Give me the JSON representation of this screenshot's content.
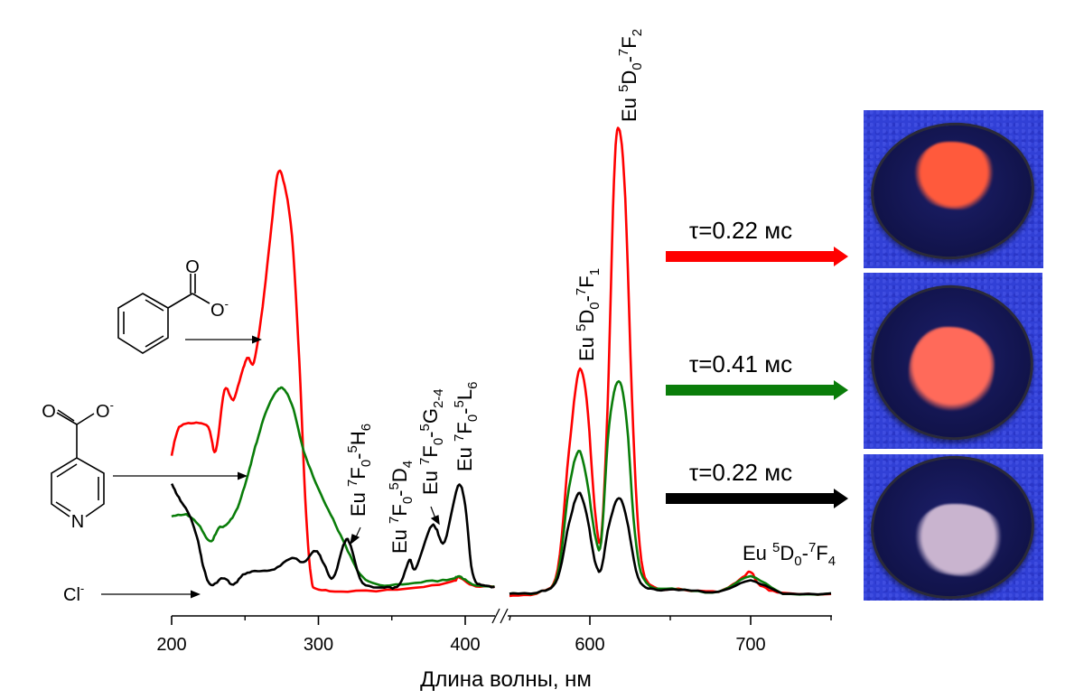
{
  "chart_data": {
    "type": "line",
    "xlabel": "Длина волны, нм",
    "ylabel": "",
    "x_axis_break": [
      420,
      550
    ],
    "xlim_segments": [
      [
        200,
        420
      ],
      [
        550,
        750
      ]
    ],
    "xticks": [
      200,
      300,
      400,
      600,
      700
    ],
    "minor_xticks": [
      250,
      350,
      550,
      650,
      750
    ],
    "y_axis_shown": false,
    "y_units": "arbitrary (max = 100)",
    "colors": {
      "benzoate": "#ff0000",
      "isonicotinate": "#0a7d0a",
      "chloride": "#000000"
    },
    "series": [
      {
        "color": "#ff0000",
        "excitation": [
          [
            200,
            30
          ],
          [
            205,
            36
          ],
          [
            215,
            37
          ],
          [
            225,
            36
          ],
          [
            230,
            31
          ],
          [
            236,
            44
          ],
          [
            242,
            42
          ],
          [
            248,
            48
          ],
          [
            252,
            51
          ],
          [
            256,
            50
          ],
          [
            262,
            62
          ],
          [
            268,
            79
          ],
          [
            272,
            90
          ],
          [
            276,
            89
          ],
          [
            282,
            77
          ],
          [
            287,
            50
          ],
          [
            291,
            21
          ],
          [
            295,
            4
          ],
          [
            300,
            1.5
          ],
          [
            320,
            1
          ],
          [
            360,
            1.5
          ],
          [
            390,
            3
          ],
          [
            396,
            4
          ],
          [
            405,
            2.3
          ],
          [
            420,
            2
          ]
        ],
        "emission": [
          [
            550,
            0
          ],
          [
            570,
            1
          ],
          [
            580,
            5.8
          ],
          [
            587,
            31
          ],
          [
            593,
            48
          ],
          [
            598,
            42
          ],
          [
            603,
            19
          ],
          [
            607,
            12.5
          ],
          [
            611,
            40.5
          ],
          [
            615,
            89
          ],
          [
            618,
            100
          ],
          [
            622,
            85
          ],
          [
            627,
            35
          ],
          [
            632,
            7.7
          ],
          [
            640,
            2
          ],
          [
            655,
            1.5
          ],
          [
            680,
            1
          ],
          [
            695,
            3.9
          ],
          [
            700,
            5.2
          ],
          [
            706,
            2.3
          ],
          [
            720,
            0.6
          ],
          [
            750,
            0.4
          ]
        ]
      },
      {
        "color": "#0a7d0a",
        "excitation": [
          [
            200,
            17
          ],
          [
            210,
            17.4
          ],
          [
            218,
            15.4
          ],
          [
            226,
            11.6
          ],
          [
            232,
            14.5
          ],
          [
            238,
            15.4
          ],
          [
            245,
            19
          ],
          [
            252,
            26
          ],
          [
            258,
            33
          ],
          [
            265,
            40
          ],
          [
            272,
            44
          ],
          [
            277,
            44
          ],
          [
            283,
            40
          ],
          [
            290,
            31
          ],
          [
            300,
            23
          ],
          [
            310,
            16.4
          ],
          [
            320,
            9.7
          ],
          [
            330,
            4
          ],
          [
            345,
            2.3
          ],
          [
            370,
            3
          ],
          [
            390,
            3.5
          ],
          [
            396,
            4.2
          ],
          [
            405,
            2.5
          ],
          [
            420,
            2
          ]
        ],
        "emission": [
          [
            550,
            0.5
          ],
          [
            570,
            1
          ],
          [
            580,
            4.8
          ],
          [
            587,
            23
          ],
          [
            593,
            31
          ],
          [
            598,
            25
          ],
          [
            603,
            13.5
          ],
          [
            607,
            11.6
          ],
          [
            612,
            36.7
          ],
          [
            618,
            46
          ],
          [
            623,
            37
          ],
          [
            628,
            13.5
          ],
          [
            635,
            2.9
          ],
          [
            655,
            1.5
          ],
          [
            680,
            1
          ],
          [
            700,
            4.2
          ],
          [
            720,
            0.6
          ],
          [
            750,
            0.4
          ]
        ]
      },
      {
        "color": "#000000",
        "excitation": [
          [
            200,
            24
          ],
          [
            205,
            21
          ],
          [
            212,
            17.4
          ],
          [
            218,
            11.6
          ],
          [
            222,
            5.8
          ],
          [
            227,
            2.3
          ],
          [
            235,
            3.9
          ],
          [
            242,
            2.5
          ],
          [
            250,
            4.8
          ],
          [
            260,
            5.4
          ],
          [
            270,
            5.8
          ],
          [
            282,
            8.1
          ],
          [
            290,
            7.3
          ],
          [
            298,
            9.7
          ],
          [
            304,
            6.8
          ],
          [
            310,
            3.9
          ],
          [
            318,
            11.6
          ],
          [
            322,
            10.6
          ],
          [
            330,
            2.9
          ],
          [
            345,
            1.9
          ],
          [
            355,
            2.3
          ],
          [
            362,
            7.7
          ],
          [
            366,
            5.8
          ],
          [
            376,
            14.5
          ],
          [
            380,
            14.5
          ],
          [
            386,
            11.6
          ],
          [
            395,
            23.5
          ],
          [
            400,
            19.3
          ],
          [
            405,
            4.8
          ],
          [
            412,
            2.3
          ],
          [
            420,
            2
          ]
        ],
        "emission": [
          [
            550,
            0.5
          ],
          [
            570,
            1
          ],
          [
            580,
            3.9
          ],
          [
            587,
            15.4
          ],
          [
            593,
            22
          ],
          [
            598,
            17.4
          ],
          [
            603,
            7.7
          ],
          [
            607,
            5.8
          ],
          [
            612,
            15.4
          ],
          [
            618,
            21
          ],
          [
            623,
            16.4
          ],
          [
            630,
            3.9
          ],
          [
            640,
            1.5
          ],
          [
            655,
            1.4
          ],
          [
            680,
            1
          ],
          [
            700,
            3.3
          ],
          [
            720,
            0.6
          ],
          [
            750,
            0.4
          ]
        ]
      }
    ],
    "annotations": [
      {
        "parts": [
          [
            "Eu ",
            ""
          ],
          [
            "7",
            "sup"
          ],
          [
            "F",
            ""
          ],
          [
            "0",
            "sub"
          ],
          [
            "-",
            ""
          ],
          [
            "5",
            "sup"
          ],
          [
            "H",
            ""
          ],
          [
            "6",
            "sub"
          ]
        ]
      },
      {
        "parts": [
          [
            "Eu ",
            ""
          ],
          [
            "7",
            "sup"
          ],
          [
            "F",
            ""
          ],
          [
            "0",
            "sub"
          ],
          [
            "-",
            ""
          ],
          [
            "5",
            "sup"
          ],
          [
            "D",
            ""
          ],
          [
            "4",
            "sub"
          ]
        ]
      },
      {
        "parts": [
          [
            "Eu ",
            ""
          ],
          [
            "7",
            "sup"
          ],
          [
            "F",
            ""
          ],
          [
            "0",
            "sub"
          ],
          [
            "-",
            ""
          ],
          [
            "5",
            "sup"
          ],
          [
            "G",
            ""
          ],
          [
            "2-4",
            "sub"
          ]
        ]
      },
      {
        "parts": [
          [
            "Eu ",
            ""
          ],
          [
            "7",
            "sup"
          ],
          [
            "F",
            ""
          ],
          [
            "0",
            "sub"
          ],
          [
            "-",
            ""
          ],
          [
            "5",
            "sup"
          ],
          [
            "L",
            ""
          ],
          [
            "6",
            "sub"
          ]
        ]
      },
      {
        "parts": [
          [
            "Eu ",
            ""
          ],
          [
            "5",
            "sup"
          ],
          [
            "D",
            ""
          ],
          [
            "0",
            "sub"
          ],
          [
            "-",
            ""
          ],
          [
            "7",
            "sup"
          ],
          [
            "F",
            ""
          ],
          [
            "1",
            "sub"
          ]
        ]
      },
      {
        "parts": [
          [
            "Eu ",
            ""
          ],
          [
            "5",
            "sup"
          ],
          [
            "D",
            ""
          ],
          [
            "0",
            "sub"
          ],
          [
            "-",
            ""
          ],
          [
            "7",
            "sup"
          ],
          [
            "F",
            ""
          ],
          [
            "2",
            "sub"
          ]
        ]
      },
      {
        "parts": [
          [
            "Eu ",
            ""
          ],
          [
            "5",
            "sup"
          ],
          [
            "D",
            ""
          ],
          [
            "0",
            "sub"
          ],
          [
            "-",
            ""
          ],
          [
            "7",
            "sup"
          ],
          [
            "F",
            ""
          ],
          [
            "4",
            "sub"
          ]
        ]
      }
    ],
    "lifetimes": [
      {
        "label": "τ=0.22 мс",
        "color": "#ff0000"
      },
      {
        "label": "τ=0.41 мс",
        "color": "#0a7d0a"
      },
      {
        "label": "τ=0.22 мс",
        "color": "#000000"
      }
    ]
  },
  "ligands": {
    "benzoate": {
      "o_label": "O",
      "o_minus_label": "O",
      "charge": "-"
    },
    "isonicotinate": {
      "o_label": "O",
      "o_minus_label": "O",
      "charge": "-",
      "n_label": "N"
    },
    "chloride": {
      "label": "Cl",
      "charge": "-"
    }
  },
  "photos": [
    {
      "powder_color": "#ff5a3c"
    },
    {
      "powder_color": "#ff6a5a"
    },
    {
      "powder_color": "#c9b4cf"
    }
  ]
}
